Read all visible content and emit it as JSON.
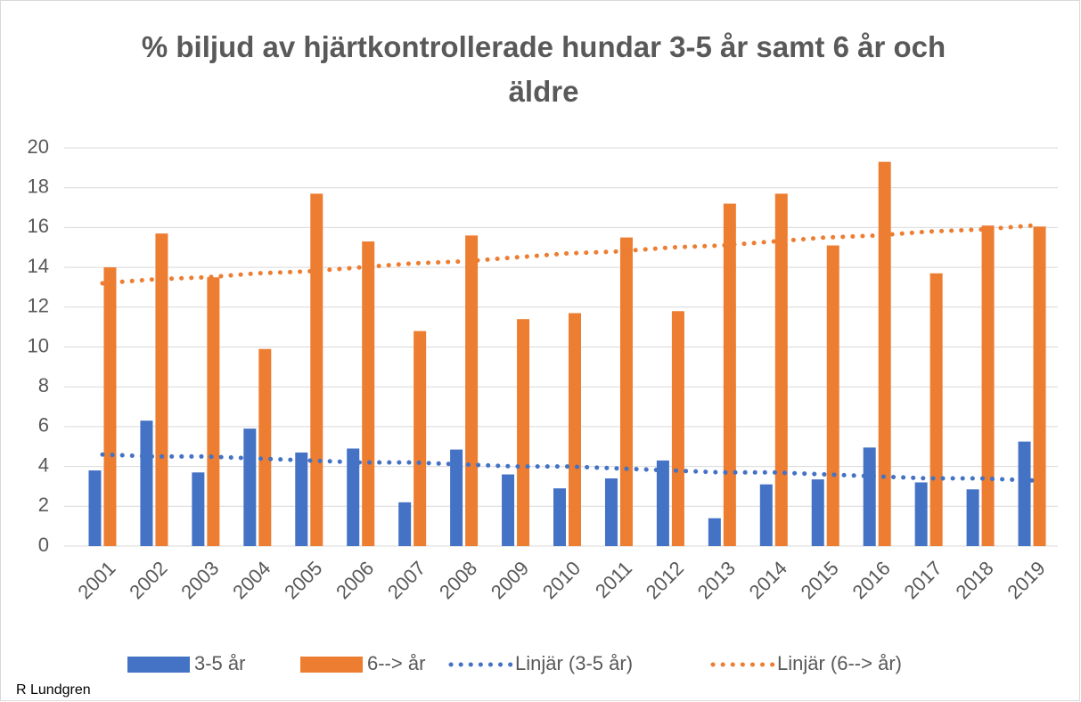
{
  "chart_data": {
    "type": "bar",
    "title": "% biljud av hjärtkontrollerade hundar 3-5 år samt 6 år och äldre",
    "footnote": "R Lundgren",
    "categories": [
      "2001",
      "2002",
      "2003",
      "2004",
      "2005",
      "2006",
      "2007",
      "2008",
      "2009",
      "2010",
      "2011",
      "2012",
      "2013",
      "2014",
      "2015",
      "2016",
      "2017",
      "2018",
      "2019"
    ],
    "series": [
      {
        "name": "3-5 år",
        "kind": "bar",
        "color": "#4472c4",
        "values": [
          3.8,
          6.3,
          3.7,
          5.9,
          4.7,
          4.9,
          2.2,
          4.85,
          3.6,
          2.9,
          3.4,
          4.3,
          1.4,
          3.1,
          3.35,
          4.95,
          3.2,
          2.85,
          5.25
        ]
      },
      {
        "name": "6--> år",
        "kind": "bar",
        "color": "#ed7d31",
        "values": [
          14.0,
          15.7,
          13.5,
          9.9,
          17.7,
          15.3,
          10.8,
          15.6,
          11.4,
          11.7,
          15.5,
          11.8,
          17.2,
          17.7,
          15.1,
          19.3,
          13.7,
          16.1,
          16.05
        ]
      },
      {
        "name": "Linjär (3-5 år)",
        "kind": "trend",
        "color": "#4472c4",
        "values": [
          4.6,
          4.5,
          4.5,
          4.4,
          4.3,
          4.2,
          4.2,
          4.1,
          4.0,
          4.0,
          3.9,
          3.8,
          3.7,
          3.7,
          3.6,
          3.5,
          3.4,
          3.4,
          3.3
        ]
      },
      {
        "name": "Linjär (6--> år)",
        "kind": "trend",
        "color": "#ed7d31",
        "values": [
          13.2,
          13.4,
          13.5,
          13.7,
          13.8,
          14.0,
          14.2,
          14.3,
          14.5,
          14.7,
          14.8,
          15.0,
          15.1,
          15.3,
          15.5,
          15.6,
          15.8,
          15.9,
          16.1
        ]
      }
    ],
    "ylim": [
      0,
      20
    ],
    "yticks": [
      0,
      2,
      4,
      6,
      8,
      10,
      12,
      14,
      16,
      18,
      20
    ],
    "grid": true,
    "legend": "bottom"
  }
}
